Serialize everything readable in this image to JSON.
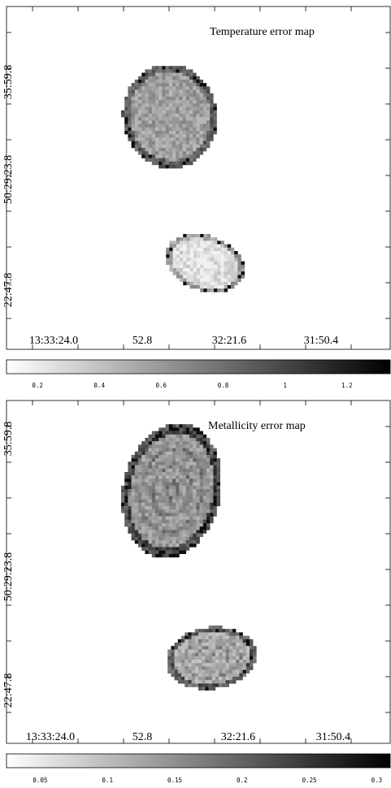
{
  "panels": [
    {
      "id": "temperature",
      "title": "Temperature error map",
      "dec_labels": [
        "35:59.8",
        "50:29:23.8",
        "22:47.8"
      ],
      "ra_labels": [
        "13:33:24.0",
        "52.8",
        "32:21.6",
        "31:50.4"
      ],
      "colorbar": {
        "ticks": [
          "0.2",
          "0.4",
          "0.6",
          "0.8",
          "1",
          "1.2"
        ],
        "tick_values": [
          0.2,
          0.4,
          0.6,
          0.8,
          1.0,
          1.2
        ],
        "min": 0.1,
        "max": 1.34,
        "colors": [
          "#ffffff",
          "#000000"
        ]
      }
    },
    {
      "id": "metallicity",
      "title": "Metallicity error map",
      "dec_labels": [
        "35:59.8",
        "50:29:23.8",
        "22:47.8"
      ],
      "ra_labels": [
        "13:33:24.0",
        "52.8",
        "32:21.6",
        "31:50.4"
      ],
      "colorbar": {
        "ticks": [
          "0.05",
          "0.1",
          "0.15",
          "0.2",
          "0.25",
          "0.3"
        ],
        "tick_values": [
          0.05,
          0.1,
          0.15,
          0.2,
          0.25,
          0.3
        ],
        "min": 0.025,
        "max": 0.31,
        "colors": [
          "#ffffff",
          "#000000"
        ]
      }
    }
  ]
}
